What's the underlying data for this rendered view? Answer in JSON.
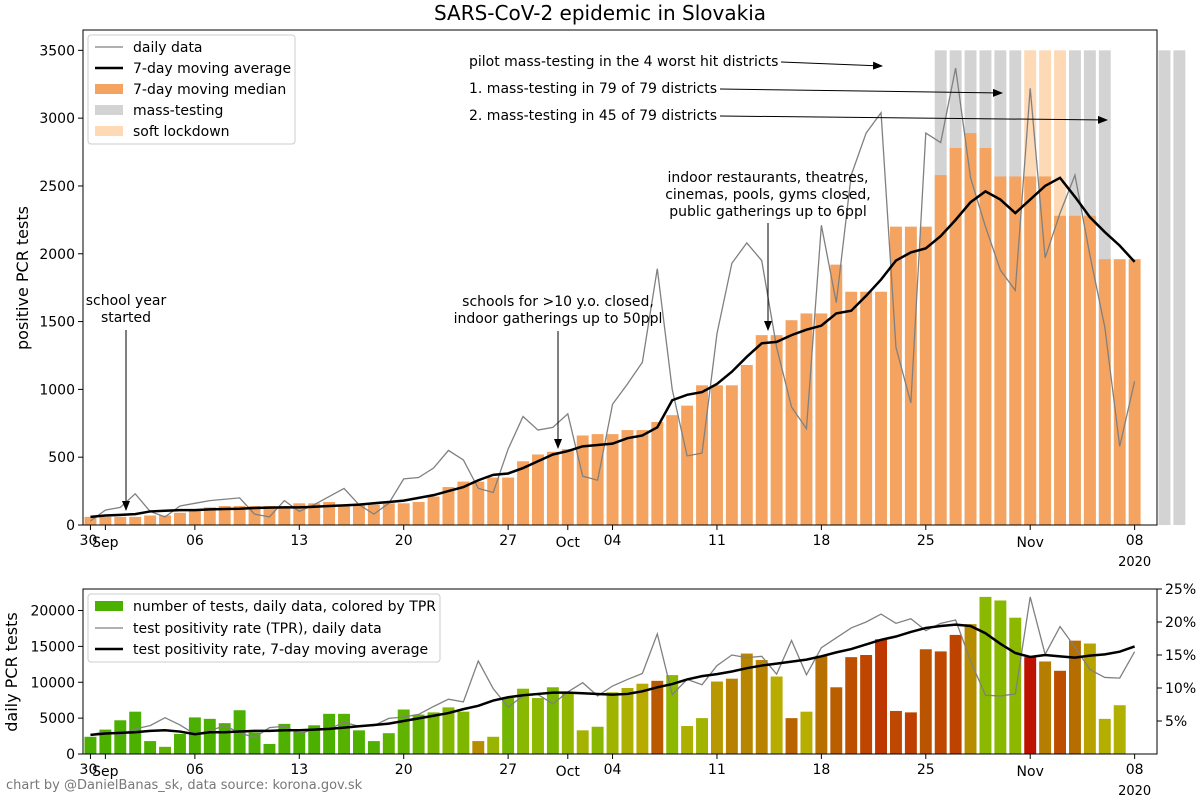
{
  "credit": "chart by @DanielBanas_sk, data source: korona.gov.sk",
  "colors": {
    "median_bar": "#f4a460",
    "mass_testing": "#d3d3d3",
    "soft_lockdown": "#fdd9b5",
    "daily_line": "#808080",
    "average_line": "#000000"
  },
  "chart_data": [
    {
      "type": "bar",
      "title": "SARS-CoV-2 epidemic in Slovakia",
      "ylabel": "positive PCR tests",
      "ylim": [
        0,
        3650
      ],
      "yticks": [
        0,
        500,
        1000,
        1500,
        2000,
        2500,
        3000,
        3500
      ],
      "x_start": "2020-08-30",
      "x_end": "2020-11-10",
      "x_ticks": [
        {
          "day": 0,
          "label": "30"
        },
        {
          "day": 1,
          "label": "Sep"
        },
        {
          "day": 7,
          "label": "06"
        },
        {
          "day": 14,
          "label": "13"
        },
        {
          "day": 21,
          "label": "20"
        },
        {
          "day": 28,
          "label": "27"
        },
        {
          "day": 32,
          "label": "Oct"
        },
        {
          "day": 35,
          "label": "04"
        },
        {
          "day": 42,
          "label": "11"
        },
        {
          "day": 49,
          "label": "18"
        },
        {
          "day": 56,
          "label": "25"
        },
        {
          "day": 63,
          "label": "Nov"
        },
        {
          "day": 70,
          "label": "08"
        }
      ],
      "year_label": "2020",
      "legend": {
        "placement": "top-left",
        "entries": [
          "daily data",
          "7-day moving average",
          "7-day moving median",
          "mass-testing",
          "soft lockdown"
        ]
      },
      "series": [
        {
          "name": "daily data",
          "values": [
            30,
            110,
            130,
            230,
            100,
            60,
            140,
            160,
            180,
            190,
            200,
            80,
            60,
            180,
            100,
            150,
            210,
            270,
            150,
            80,
            160,
            340,
            350,
            420,
            550,
            480,
            270,
            240,
            560,
            800,
            700,
            720,
            820,
            360,
            330,
            890,
            1040,
            1200,
            1890,
            1000,
            510,
            530,
            1410,
            1930,
            2080,
            1950,
            1310,
            870,
            710,
            2210,
            1640,
            2580,
            2890,
            3040,
            1310,
            900,
            2890,
            2820,
            3370,
            2560,
            2200,
            1880,
            1730,
            3220,
            1970,
            2300,
            2580,
            1990,
            1460,
            580,
            1060
          ]
        },
        {
          "name": "7-day moving average",
          "values": [
            60,
            70,
            75,
            80,
            100,
            105,
            110,
            110,
            115,
            118,
            120,
            125,
            128,
            130,
            130,
            135,
            140,
            145,
            150,
            160,
            170,
            180,
            200,
            220,
            250,
            280,
            330,
            370,
            380,
            420,
            470,
            520,
            545,
            580,
            590,
            600,
            640,
            660,
            720,
            920,
            960,
            980,
            1040,
            1130,
            1240,
            1340,
            1350,
            1400,
            1440,
            1470,
            1560,
            1580,
            1690,
            1810,
            1950,
            2010,
            2040,
            2130,
            2250,
            2380,
            2460,
            2400,
            2300,
            2400,
            2500,
            2560,
            2420,
            2270,
            2160,
            2060,
            1940
          ]
        },
        {
          "name": "7-day moving median",
          "values": [
            60,
            60,
            60,
            60,
            70,
            70,
            90,
            110,
            130,
            140,
            140,
            140,
            140,
            140,
            160,
            160,
            170,
            140,
            150,
            150,
            160,
            160,
            170,
            210,
            280,
            320,
            320,
            350,
            350,
            470,
            520,
            540,
            560,
            660,
            670,
            670,
            700,
            700,
            760,
            810,
            880,
            1030,
            1030,
            1030,
            1180,
            1400,
            1400,
            1510,
            1560,
            1560,
            1920,
            1720,
            1720,
            1720,
            2200,
            2200,
            2200,
            2580,
            2780,
            2890,
            2780,
            2570,
            2570,
            2570,
            2570,
            2280,
            2280,
            2280,
            1960,
            1960,
            1960
          ]
        }
      ],
      "mass_testing_days": [
        57,
        58,
        59,
        60,
        61,
        62,
        66,
        67,
        68,
        72,
        73
      ],
      "soft_lockdown_days": [
        62,
        63,
        64,
        65,
        66,
        67,
        68
      ],
      "annotations": [
        "school year\nstarted",
        "schools for >10 y.o. closed,\nindoor gatherings up to 50ppl",
        "indoor restaurants, theatres,\ncinemas, pools, gyms closed,\npublic gatherings up to 6ppl",
        "pilot mass-testing in the 4 worst hit districts",
        "1. mass-testing in 79 of 79 districts",
        "2. mass-testing in 45 of 79 districts"
      ]
    },
    {
      "type": "bar",
      "ylabel": "daily PCR tests",
      "ylim": [
        0,
        23000
      ],
      "yticks": [
        0,
        5000,
        10000,
        15000,
        20000
      ],
      "y2lim": [
        0,
        25
      ],
      "y2ticks": [
        5,
        10,
        15,
        20,
        25
      ],
      "y2_tick_labels": [
        "5%",
        "10%",
        "15%",
        "20%",
        "25%"
      ],
      "legend": {
        "placement": "top-left",
        "entries": [
          "number of tests, daily data, colored by TPR",
          "test positivity rate (TPR), daily data",
          "test positivity rate, 7-day moving average"
        ]
      },
      "series": [
        {
          "name": "number of tests, daily data, colored by TPR",
          "values": [
            2400,
            3400,
            4700,
            5900,
            1800,
            1000,
            2800,
            5100,
            4900,
            4300,
            6100,
            3000,
            1400,
            4200,
            3100,
            4000,
            5600,
            5600,
            3300,
            1800,
            2900,
            6200,
            5500,
            5800,
            6500,
            5900,
            1800,
            2400,
            7800,
            9100,
            7800,
            9300,
            8600,
            3300,
            3800,
            8600,
            9200,
            9800,
            10200,
            11000,
            3900,
            5000,
            10100,
            10500,
            14000,
            13100,
            10800,
            5000,
            5900,
            13700,
            9300,
            13500,
            13800,
            16000,
            6000,
            5800,
            14600,
            14300,
            16600,
            18100,
            21900,
            21400,
            19000,
            13500,
            12900,
            11600,
            15800,
            15400,
            4900,
            6800,
            0
          ]
        },
        {
          "name": "test positivity rate (TPR), daily data",
          "values": [
            2.9,
            3.4,
            2.9,
            3.8,
            4.3,
            5.5,
            4.4,
            3.0,
            3.5,
            4.3,
            3.2,
            2.5,
            4.0,
            4.2,
            3.1,
            3.7,
            3.8,
            4.8,
            4.2,
            4.3,
            5.4,
            5.6,
            6.0,
            7.2,
            8.3,
            7.9,
            14.1,
            9.9,
            7.1,
            8.8,
            9.0,
            7.6,
            9.4,
            10.8,
            8.8,
            10.3,
            11.3,
            12.2,
            18.2,
            9.0,
            11.3,
            10.5,
            13.4,
            15.0,
            14.6,
            14.8,
            12.1,
            17.2,
            12.0,
            16.1,
            17.6,
            19.1,
            20.0,
            21.2,
            19.8,
            20.5,
            18.7,
            19.8,
            20.3,
            14.1,
            8.9,
            8.8,
            9.1,
            23.8,
            15.1,
            19.3,
            16.2,
            12.8,
            11.6,
            11.5,
            15.5
          ]
        },
        {
          "name": "test positivity rate, 7-day moving average",
          "values": [
            2.9,
            3.1,
            3.2,
            3.3,
            3.5,
            3.6,
            3.4,
            3.0,
            3.3,
            3.3,
            3.4,
            3.5,
            3.5,
            3.6,
            3.6,
            3.7,
            3.8,
            4.0,
            4.2,
            4.4,
            4.6,
            5.0,
            5.4,
            5.8,
            6.2,
            6.8,
            7.3,
            8.1,
            8.6,
            8.9,
            9.1,
            9.3,
            9.3,
            9.2,
            9.1,
            9.0,
            9.1,
            9.5,
            10.1,
            10.6,
            11.3,
            11.8,
            12.1,
            12.5,
            13.0,
            13.4,
            13.7,
            14.0,
            14.3,
            14.8,
            15.4,
            15.9,
            16.6,
            17.3,
            17.8,
            18.5,
            19.1,
            19.4,
            19.6,
            19.4,
            18.3,
            16.7,
            15.3,
            14.7,
            15.0,
            14.8,
            14.6,
            14.9,
            15.1,
            15.5,
            16.3
          ]
        }
      ],
      "x_ticks": [
        {
          "day": 0,
          "label": "30"
        },
        {
          "day": 1,
          "label": "Sep"
        },
        {
          "day": 7,
          "label": "06"
        },
        {
          "day": 14,
          "label": "13"
        },
        {
          "day": 21,
          "label": "20"
        },
        {
          "day": 28,
          "label": "27"
        },
        {
          "day": 32,
          "label": "Oct"
        },
        {
          "day": 35,
          "label": "04"
        },
        {
          "day": 42,
          "label": "11"
        },
        {
          "day": 49,
          "label": "18"
        },
        {
          "day": 56,
          "label": "25"
        },
        {
          "day": 63,
          "label": "Nov"
        },
        {
          "day": 70,
          "label": "08"
        }
      ],
      "year_label": "2020"
    }
  ]
}
